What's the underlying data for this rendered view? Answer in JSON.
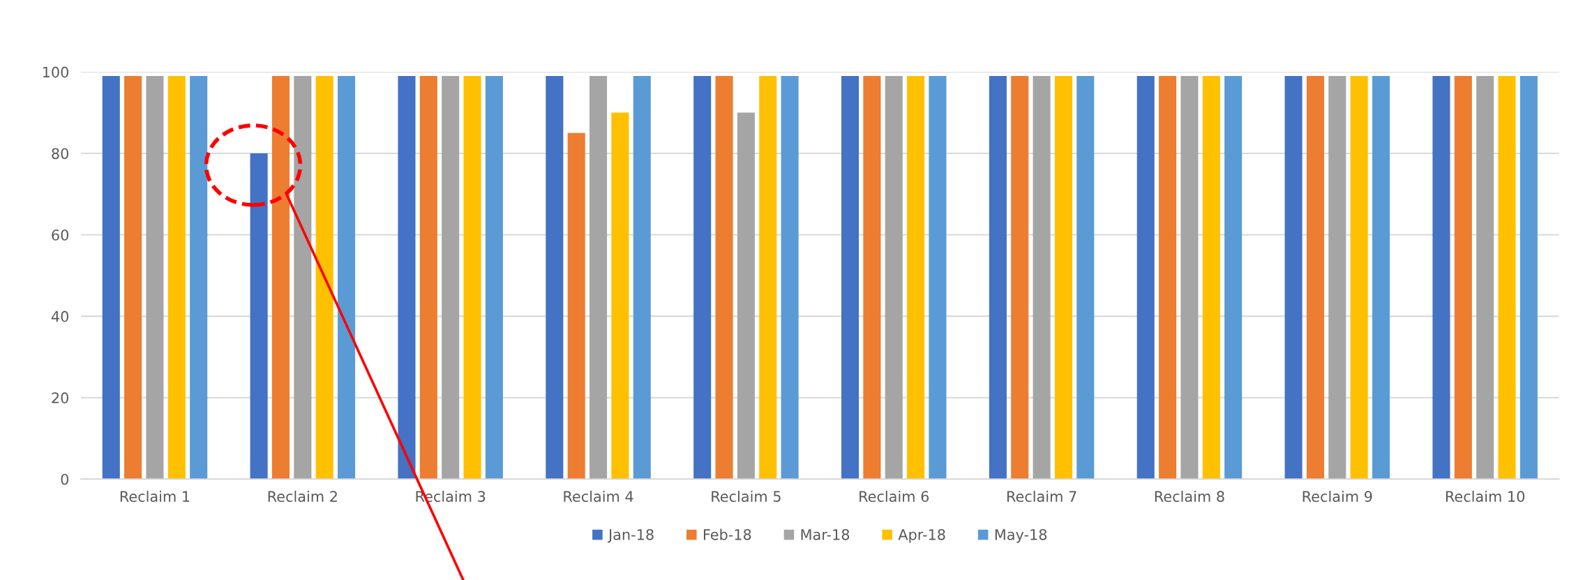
{
  "chart_data": {
    "type": "bar",
    "categories": [
      "Reclaim 1",
      "Reclaim 2",
      "Reclaim 3",
      "Reclaim 4",
      "Reclaim 5",
      "Reclaim 6",
      "Reclaim 7",
      "Reclaim 8",
      "Reclaim 9",
      "Reclaim 10"
    ],
    "series": [
      {
        "name": "Jan-18",
        "color": "#4472c4",
        "values": [
          99,
          80,
          99,
          99,
          99,
          99,
          99,
          99,
          99,
          99
        ]
      },
      {
        "name": "Feb-18",
        "color": "#ed7d31",
        "values": [
          99,
          99,
          99,
          85,
          99,
          99,
          99,
          99,
          99,
          99
        ]
      },
      {
        "name": "Mar-18",
        "color": "#a5a5a5",
        "values": [
          99,
          99,
          99,
          99,
          90,
          99,
          99,
          99,
          99,
          99
        ]
      },
      {
        "name": "Apr-18",
        "color": "#ffc000",
        "values": [
          99,
          99,
          99,
          90,
          99,
          99,
          99,
          99,
          99,
          99
        ]
      },
      {
        "name": "May-18",
        "color": "#5b9bd5",
        "values": [
          99,
          99,
          99,
          99,
          99,
          99,
          99,
          99,
          99,
          99
        ]
      }
    ],
    "ylim": [
      0,
      100
    ],
    "yticks": [
      0,
      20,
      40,
      60,
      80,
      100
    ],
    "grid": "y",
    "legend": "bottom"
  }
}
